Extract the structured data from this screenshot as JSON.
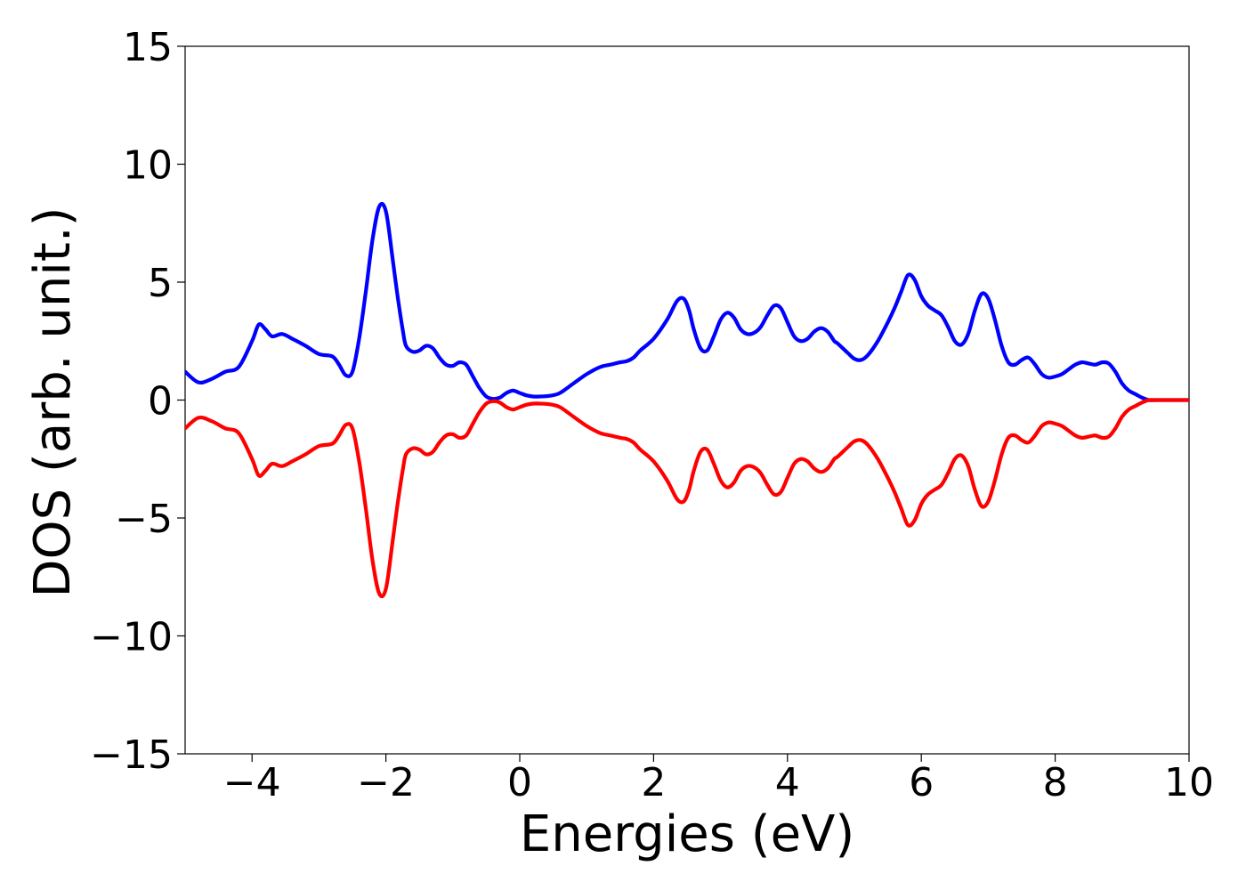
{
  "chart_data": {
    "type": "line",
    "title": "",
    "xlabel": "Energies (eV)",
    "ylabel": "DOS (arb. unit.)",
    "xlim": [
      -5,
      10
    ],
    "ylim": [
      -15,
      15
    ],
    "grid": false,
    "legend": "none",
    "x_ticks": [
      {
        "value": -4,
        "label": "−4"
      },
      {
        "value": -2,
        "label": "−2"
      },
      {
        "value": 0,
        "label": "0"
      },
      {
        "value": 2,
        "label": "2"
      },
      {
        "value": 4,
        "label": "4"
      },
      {
        "value": 6,
        "label": "6"
      },
      {
        "value": 8,
        "label": "8"
      },
      {
        "value": 10,
        "label": "10"
      }
    ],
    "y_ticks": [
      {
        "value": 15,
        "label": "15"
      },
      {
        "value": 10,
        "label": "10"
      },
      {
        "value": 5,
        "label": "5"
      },
      {
        "value": 0,
        "label": "0"
      },
      {
        "value": -5,
        "label": "−5"
      },
      {
        "value": -10,
        "label": "−10"
      },
      {
        "value": -15,
        "label": "−15"
      }
    ],
    "series": [
      {
        "color": "#0000ff",
        "x": [
          -5.0,
          -4.8,
          -4.6,
          -4.4,
          -4.2,
          -4.0,
          -3.9,
          -3.8,
          -3.7,
          -3.55,
          -3.4,
          -3.2,
          -3.0,
          -2.8,
          -2.7,
          -2.6,
          -2.5,
          -2.4,
          -2.3,
          -2.2,
          -2.1,
          -2.0,
          -1.9,
          -1.83,
          -1.75,
          -1.7,
          -1.6,
          -1.5,
          -1.4,
          -1.3,
          -1.2,
          -1.1,
          -1.0,
          -0.9,
          -0.8,
          -0.7,
          -0.6,
          -0.5,
          -0.4,
          -0.3,
          -0.2,
          -0.1,
          0.0,
          0.1,
          0.2,
          0.3,
          0.45,
          0.6,
          0.8,
          1.0,
          1.2,
          1.35,
          1.5,
          1.6,
          1.7,
          1.8,
          2.0,
          2.2,
          2.35,
          2.45,
          2.53,
          2.6,
          2.7,
          2.8,
          2.9,
          3.0,
          3.1,
          3.2,
          3.3,
          3.4,
          3.5,
          3.6,
          3.7,
          3.8,
          3.9,
          4.0,
          4.1,
          4.2,
          4.3,
          4.4,
          4.5,
          4.6,
          4.7,
          4.75,
          4.9,
          5.0,
          5.1,
          5.2,
          5.35,
          5.5,
          5.6,
          5.7,
          5.8,
          5.9,
          6.0,
          6.1,
          6.2,
          6.3,
          6.4,
          6.5,
          6.6,
          6.7,
          6.8,
          6.9,
          7.0,
          7.1,
          7.2,
          7.3,
          7.4,
          7.5,
          7.6,
          7.7,
          7.8,
          7.9,
          8.0,
          8.1,
          8.2,
          8.3,
          8.4,
          8.5,
          8.6,
          8.7,
          8.8,
          8.9,
          9.0,
          9.1,
          9.2,
          9.3,
          9.4,
          9.5,
          9.6,
          9.8,
          10.0
        ],
        "y": [
          1.2,
          0.75,
          0.9,
          1.2,
          1.4,
          2.5,
          3.2,
          3.0,
          2.7,
          2.8,
          2.6,
          2.3,
          1.95,
          1.85,
          1.5,
          1.05,
          1.2,
          2.6,
          4.6,
          6.8,
          8.2,
          8.0,
          6.0,
          4.5,
          3.0,
          2.3,
          2.05,
          2.1,
          2.3,
          2.2,
          1.8,
          1.5,
          1.45,
          1.6,
          1.5,
          1.0,
          0.5,
          0.15,
          0.05,
          0.1,
          0.3,
          0.4,
          0.3,
          0.2,
          0.15,
          0.15,
          0.18,
          0.3,
          0.7,
          1.1,
          1.4,
          1.5,
          1.6,
          1.65,
          1.8,
          2.1,
          2.6,
          3.4,
          4.2,
          4.3,
          3.8,
          3.0,
          2.2,
          2.1,
          2.7,
          3.4,
          3.7,
          3.5,
          3.0,
          2.8,
          2.85,
          3.1,
          3.6,
          4.0,
          3.9,
          3.3,
          2.7,
          2.5,
          2.6,
          2.9,
          3.05,
          2.9,
          2.5,
          2.4,
          2.0,
          1.75,
          1.7,
          1.9,
          2.5,
          3.3,
          3.9,
          4.6,
          5.3,
          5.1,
          4.4,
          4.0,
          3.8,
          3.6,
          3.1,
          2.5,
          2.35,
          2.8,
          3.8,
          4.5,
          4.3,
          3.4,
          2.3,
          1.6,
          1.5,
          1.7,
          1.8,
          1.5,
          1.1,
          0.95,
          1.0,
          1.1,
          1.3,
          1.5,
          1.6,
          1.55,
          1.5,
          1.6,
          1.55,
          1.2,
          0.7,
          0.4,
          0.25,
          0.1,
          0.0,
          0.0,
          0.0,
          0.0,
          0.0
        ]
      },
      {
        "color": "#ff0000",
        "x": [
          -5.0,
          -4.8,
          -4.6,
          -4.4,
          -4.2,
          -4.0,
          -3.9,
          -3.8,
          -3.7,
          -3.55,
          -3.4,
          -3.2,
          -3.0,
          -2.8,
          -2.7,
          -2.6,
          -2.5,
          -2.4,
          -2.3,
          -2.2,
          -2.1,
          -2.0,
          -1.9,
          -1.83,
          -1.75,
          -1.7,
          -1.6,
          -1.5,
          -1.4,
          -1.3,
          -1.2,
          -1.1,
          -1.0,
          -0.9,
          -0.8,
          -0.7,
          -0.6,
          -0.5,
          -0.4,
          -0.3,
          -0.2,
          -0.1,
          0.0,
          0.1,
          0.2,
          0.3,
          0.45,
          0.6,
          0.8,
          1.0,
          1.2,
          1.35,
          1.5,
          1.6,
          1.7,
          1.8,
          2.0,
          2.2,
          2.35,
          2.45,
          2.53,
          2.6,
          2.7,
          2.8,
          2.9,
          3.0,
          3.1,
          3.2,
          3.3,
          3.4,
          3.5,
          3.6,
          3.7,
          3.8,
          3.9,
          4.0,
          4.1,
          4.2,
          4.3,
          4.4,
          4.5,
          4.6,
          4.7,
          4.75,
          4.9,
          5.0,
          5.1,
          5.2,
          5.35,
          5.5,
          5.6,
          5.7,
          5.8,
          5.9,
          6.0,
          6.1,
          6.2,
          6.3,
          6.4,
          6.5,
          6.6,
          6.7,
          6.8,
          6.9,
          7.0,
          7.1,
          7.2,
          7.3,
          7.4,
          7.5,
          7.6,
          7.7,
          7.8,
          7.9,
          8.0,
          8.1,
          8.2,
          8.3,
          8.4,
          8.5,
          8.6,
          8.7,
          8.8,
          8.9,
          9.0,
          9.1,
          9.2,
          9.3,
          9.4,
          9.5,
          9.6,
          9.8,
          10.0
        ],
        "y": [
          -1.2,
          -0.75,
          -0.9,
          -1.2,
          -1.4,
          -2.5,
          -3.2,
          -3.0,
          -2.7,
          -2.8,
          -2.6,
          -2.3,
          -1.95,
          -1.85,
          -1.5,
          -1.05,
          -1.2,
          -2.6,
          -4.6,
          -6.8,
          -8.2,
          -8.0,
          -6.0,
          -4.5,
          -3.0,
          -2.3,
          -2.05,
          -2.1,
          -2.3,
          -2.2,
          -1.8,
          -1.5,
          -1.45,
          -1.6,
          -1.5,
          -1.0,
          -0.5,
          -0.15,
          -0.05,
          -0.1,
          -0.3,
          -0.4,
          -0.3,
          -0.2,
          -0.15,
          -0.15,
          -0.18,
          -0.3,
          -0.7,
          -1.1,
          -1.4,
          -1.5,
          -1.6,
          -1.65,
          -1.8,
          -2.1,
          -2.6,
          -3.4,
          -4.2,
          -4.3,
          -3.8,
          -3.0,
          -2.2,
          -2.1,
          -2.7,
          -3.4,
          -3.7,
          -3.5,
          -3.0,
          -2.8,
          -2.85,
          -3.1,
          -3.6,
          -4.0,
          -3.9,
          -3.3,
          -2.7,
          -2.5,
          -2.6,
          -2.9,
          -3.05,
          -2.9,
          -2.5,
          -2.4,
          -2.0,
          -1.75,
          -1.7,
          -1.9,
          -2.5,
          -3.3,
          -3.9,
          -4.6,
          -5.3,
          -5.1,
          -4.4,
          -4.0,
          -3.8,
          -3.6,
          -3.1,
          -2.5,
          -2.35,
          -2.8,
          -3.8,
          -4.5,
          -4.3,
          -3.4,
          -2.3,
          -1.6,
          -1.5,
          -1.7,
          -1.8,
          -1.5,
          -1.1,
          -0.95,
          -1.0,
          -1.1,
          -1.3,
          -1.5,
          -1.6,
          -1.55,
          -1.5,
          -1.6,
          -1.55,
          -1.2,
          -0.7,
          -0.4,
          -0.25,
          -0.1,
          0.0,
          0.0,
          0.0,
          0.0,
          0.0
        ]
      }
    ]
  }
}
